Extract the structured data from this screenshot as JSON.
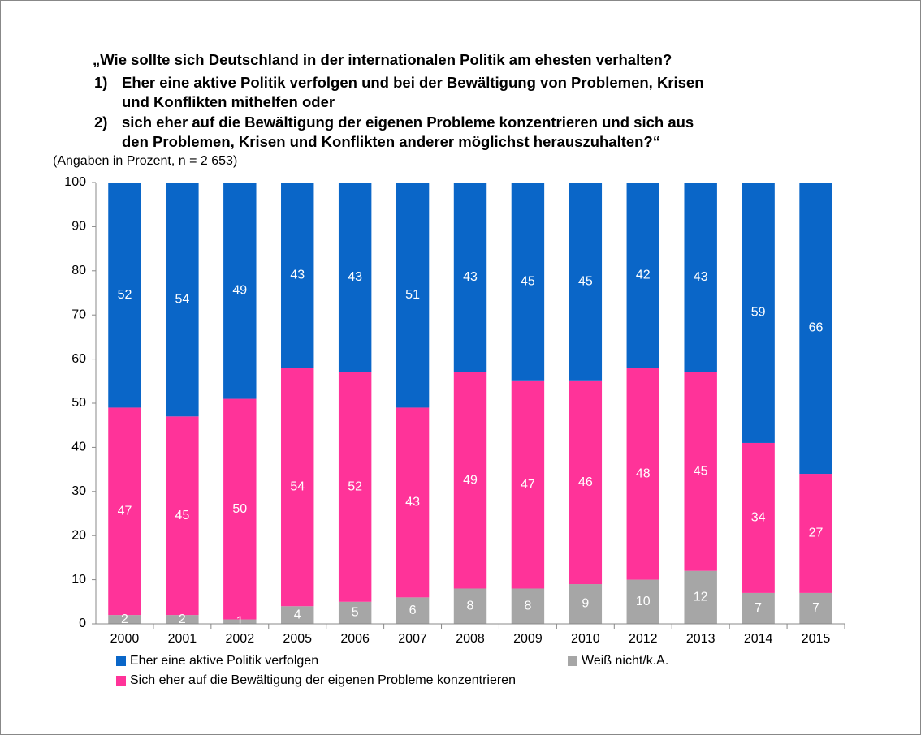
{
  "chart_data": {
    "type": "stacked_bar",
    "title": [
      "„Wie sollte sich Deutschland in der internationalen Politik am ehesten verhalten?",
      "1)",
      "Eher eine aktive Politik verfolgen und bei der Bewältigung von Problemen, Krisen",
      "und Konflikten mithelfen oder",
      "2)",
      "sich eher auf die Bewältigung der eigenen Probleme konzentrieren und sich aus",
      "den Problemen, Krisen und Konflikten anderer möglichst herauszuhalten?“"
    ],
    "subtitle": "(Angaben in Prozent, n = 2 653)",
    "categories": [
      "2000",
      "2001",
      "2002",
      "2005",
      "2006",
      "2007",
      "2008",
      "2009",
      "2010",
      "2012",
      "2013",
      "2014",
      "2015"
    ],
    "series": [
      {
        "name": "Eher eine aktive Politik verfolgen",
        "color": "#0a66c8",
        "values": [
          52,
          54,
          49,
          43,
          43,
          51,
          43,
          45,
          45,
          42,
          43,
          59,
          66
        ]
      },
      {
        "name": "Sich eher auf die Bewältigung der eigenen Probleme konzentrieren",
        "color": "#ff3399",
        "values": [
          47,
          45,
          50,
          54,
          52,
          43,
          49,
          47,
          46,
          48,
          45,
          34,
          27
        ]
      },
      {
        "name": "Weiß nicht/k.A.",
        "color": "#a6a6a6",
        "values": [
          2,
          2,
          1,
          4,
          5,
          6,
          8,
          8,
          9,
          10,
          12,
          7,
          7
        ]
      }
    ],
    "ylim": [
      0,
      100
    ],
    "yticks": [
      0,
      10,
      20,
      30,
      40,
      50,
      60,
      70,
      80,
      90,
      100
    ]
  }
}
